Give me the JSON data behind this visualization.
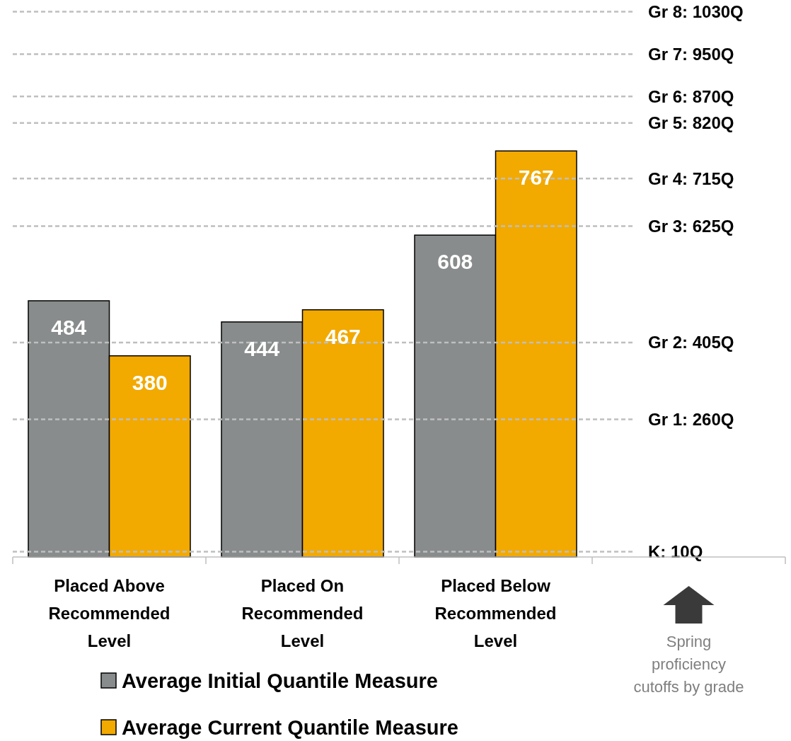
{
  "chart_data": {
    "type": "bar",
    "categories": [
      "Placed Above Recommended Level",
      "Placed On Recommended Level",
      "Placed Below Recommended Level",
      null
    ],
    "series": [
      {
        "name": "Average Initial Quantile Measure",
        "color": "#898c8c",
        "values": [
          484,
          444,
          608,
          null
        ]
      },
      {
        "name": "Average Current Quantile Measure",
        "color": "#f2a900",
        "values": [
          380,
          467,
          767,
          null
        ]
      }
    ],
    "data_labels": true,
    "legend": "bottom",
    "ref_lines": [
      {
        "axis": "y",
        "value": 1030,
        "label": "Gr 8: 1030Q",
        "color": "#bfbfbf",
        "line_style": "dashed"
      },
      {
        "axis": "y",
        "value": 950,
        "label": "Gr 7: 950Q",
        "color": "#bfbfbf",
        "line_style": "dashed"
      },
      {
        "axis": "y",
        "value": 870,
        "label": "Gr 6: 870Q",
        "color": "#bfbfbf",
        "line_style": "dashed"
      },
      {
        "axis": "y",
        "value": 820,
        "label": "Gr 5: 820Q",
        "color": "#bfbfbf",
        "line_style": "dashed"
      },
      {
        "axis": "y",
        "value": 715,
        "label": "Gr 4: 715Q",
        "color": "#bfbfbf",
        "line_style": "dashed"
      },
      {
        "axis": "y",
        "value": 625,
        "label": "Gr 3: 625Q",
        "color": "#bfbfbf",
        "line_style": "dashed"
      },
      {
        "axis": "y",
        "value": 405,
        "label": "Gr 2: 405Q",
        "color": "#bfbfbf",
        "line_style": "dashed"
      },
      {
        "axis": "y",
        "value": 260,
        "label": "Gr 1: 260Q",
        "color": "#bfbfbf",
        "line_style": "dashed"
      },
      {
        "axis": "y",
        "value": 10,
        "label": "K: 10Q",
        "color": "#bfbfbf",
        "line_style": "dashed"
      }
    ],
    "annotations": [
      "Spring proficiency cutoffs by grade"
    ]
  }
}
